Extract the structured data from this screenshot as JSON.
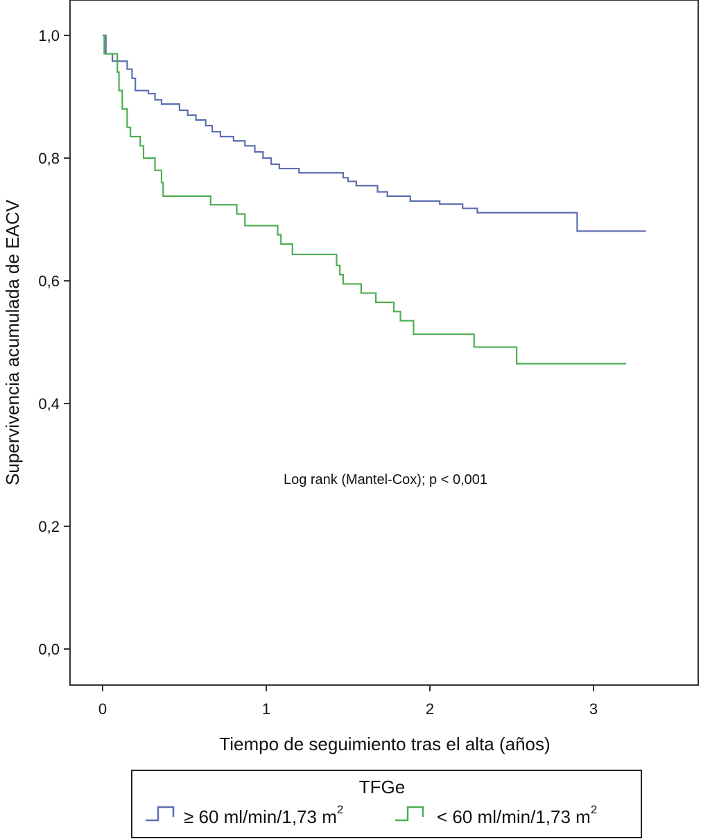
{
  "chart_data": {
    "type": "line",
    "subtype": "kaplan-meier-step",
    "title": "",
    "xlabel": "Tiempo de seguimiento tras el alta (años)",
    "ylabel": "Supervivencia acumulada de EACV",
    "xlim": [
      0,
      3.5
    ],
    "ylim": [
      0,
      1.0
    ],
    "x_ticks": [
      0,
      1,
      2,
      3
    ],
    "x_tick_labels": [
      "0",
      "1",
      "2",
      "3"
    ],
    "y_ticks": [
      0.0,
      0.2,
      0.4,
      0.6,
      0.8,
      1.0
    ],
    "y_tick_labels": [
      "0,0",
      "0,2",
      "0,4",
      "0,6",
      "0,8",
      "1,0"
    ],
    "grid": false,
    "annotation": "Log rank (Mantel-Cox); p < 0,001",
    "legend": {
      "title": "TFGe",
      "placement": "bottom",
      "entries": [
        {
          "label": "≥ 60 ml/min/1,73 m",
          "superscript": "2",
          "color": "#5b6fb0"
        },
        {
          "label": "< 60 ml/min/1,73 m",
          "superscript": "2",
          "color": "#4caf50"
        }
      ]
    },
    "series": [
      {
        "name": "≥ 60 ml/min/1,73 m2",
        "color": "#5b6fb0",
        "x": [
          0,
          0.02,
          0.06,
          0.15,
          0.18,
          0.2,
          0.28,
          0.32,
          0.36,
          0.47,
          0.52,
          0.57,
          0.63,
          0.67,
          0.72,
          0.8,
          0.87,
          0.93,
          0.98,
          1.03,
          1.08,
          1.2,
          1.47,
          1.5,
          1.55,
          1.68,
          1.74,
          1.88,
          2.06,
          2.2,
          2.29,
          2.9,
          3.32
        ],
        "y": [
          1.0,
          0.97,
          0.958,
          0.945,
          0.93,
          0.91,
          0.905,
          0.895,
          0.888,
          0.878,
          0.87,
          0.862,
          0.853,
          0.843,
          0.835,
          0.828,
          0.82,
          0.81,
          0.8,
          0.79,
          0.783,
          0.776,
          0.768,
          0.762,
          0.755,
          0.745,
          0.738,
          0.73,
          0.725,
          0.718,
          0.711,
          0.681,
          0.681
        ]
      },
      {
        "name": "< 60 ml/min/1,73 m2",
        "color": "#4caf50",
        "x": [
          0,
          0.01,
          0.09,
          0.1,
          0.12,
          0.15,
          0.17,
          0.23,
          0.25,
          0.32,
          0.36,
          0.37,
          0.66,
          0.82,
          0.87,
          1.07,
          1.09,
          1.16,
          1.43,
          1.45,
          1.47,
          1.58,
          1.67,
          1.78,
          1.82,
          1.9,
          2.27,
          2.53,
          3.2
        ],
        "y": [
          1.0,
          0.97,
          0.94,
          0.91,
          0.88,
          0.85,
          0.835,
          0.82,
          0.8,
          0.78,
          0.76,
          0.738,
          0.724,
          0.709,
          0.69,
          0.675,
          0.66,
          0.643,
          0.625,
          0.61,
          0.595,
          0.58,
          0.565,
          0.55,
          0.535,
          0.513,
          0.492,
          0.465,
          0.465
        ]
      }
    ]
  }
}
